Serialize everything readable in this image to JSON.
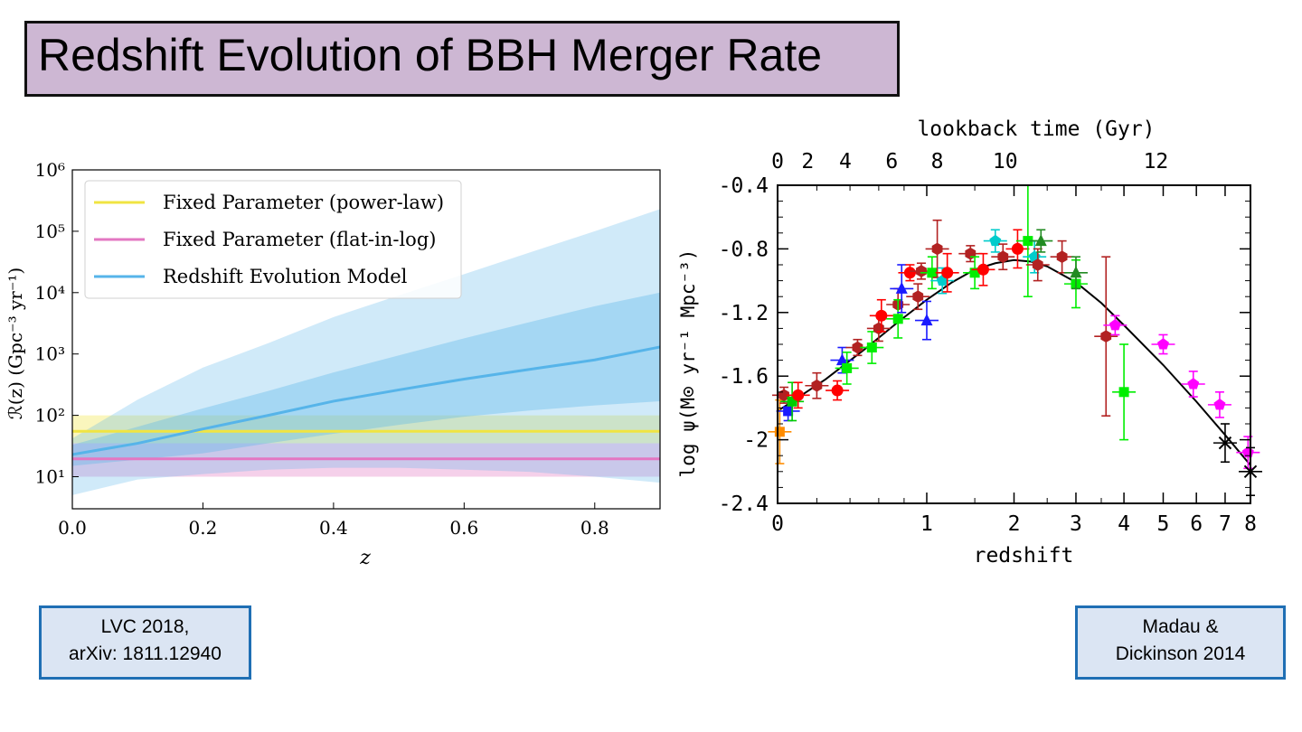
{
  "slide": {
    "title": "Redshift Evolution of BBH Merger Rate",
    "citations": [
      {
        "line1": "LVC 2018,",
        "line2": "arXiv: 1811.12940"
      },
      {
        "line1": "Madau &",
        "line2": "Dickinson 2014"
      }
    ]
  },
  "chart_data": [
    {
      "type": "line",
      "yscale": "log",
      "xlabel": "z",
      "ylabel": "ℛ(z) (Gpc⁻³ yr⁻¹)",
      "xlim": [
        0,
        0.9
      ],
      "ylim": [
        3,
        1000000
      ],
      "xticks": [
        "0.0",
        "0.2",
        "0.4",
        "0.6",
        "0.8"
      ],
      "yticks": [
        "10¹",
        "10²",
        "10³",
        "10⁴",
        "10⁵",
        "10⁶"
      ],
      "legend_position": "top-left",
      "series": [
        {
          "name": "Fixed Parameter (power-law)",
          "color": "#f0e442",
          "x": [
            0.0,
            0.9
          ],
          "median": [
            55,
            55
          ],
          "band90_low": [
            35,
            35
          ],
          "band90_high": [
            100,
            100
          ]
        },
        {
          "name": "Fixed Parameter (flat-in-log)",
          "color": "#e377c2",
          "x": [
            0.0,
            0.9
          ],
          "median": [
            19.5,
            19.5
          ],
          "band90_low": [
            10,
            10
          ],
          "band90_high": [
            35,
            35
          ]
        },
        {
          "name": "Redshift Evolution Model",
          "color": "#56b4e9",
          "x": [
            0.0,
            0.1,
            0.2,
            0.3,
            0.4,
            0.5,
            0.6,
            0.7,
            0.8,
            0.9
          ],
          "median": [
            23,
            35,
            60,
            100,
            170,
            260,
            390,
            560,
            800,
            1300
          ],
          "band50_low": [
            15,
            19,
            24,
            35,
            50,
            70,
            95,
            120,
            145,
            170
          ],
          "band50_high": [
            33,
            65,
            130,
            250,
            500,
            950,
            1800,
            3300,
            6000,
            10000
          ],
          "band90_low": [
            5,
            9,
            11,
            13,
            14,
            14,
            13,
            12,
            10,
            8
          ],
          "band90_high": [
            42,
            180,
            600,
            1500,
            4000,
            9000,
            20000,
            45000,
            100000,
            230000
          ]
        }
      ]
    },
    {
      "type": "scatter",
      "xlabel": "redshift",
      "x2label": "lookback time (Gyr)",
      "ylabel": "log ψ(M⊙ yr⁻¹ Mpc⁻³)",
      "xscale": "log(1+z)",
      "xlim": [
        0,
        8
      ],
      "ylim": [
        -2.4,
        -0.4
      ],
      "xticks": [
        "0",
        "1",
        "2",
        "3",
        "4",
        "5",
        "6",
        "7",
        "8"
      ],
      "x2ticks": [
        "0",
        "2",
        "4",
        "6",
        "8",
        "10",
        "12"
      ],
      "yticks": [
        "-0.4",
        "-0.8",
        "-1.2",
        "-1.6",
        "-2",
        "-2.4"
      ],
      "fit_curve": {
        "z": [
          0,
          0.25,
          0.5,
          0.75,
          1.0,
          1.25,
          1.5,
          1.75,
          2.0,
          2.25,
          2.5,
          3.0,
          3.5,
          4.0,
          5.0,
          6.0,
          7.0,
          8.0
        ],
        "logpsi": [
          -1.82,
          -1.62,
          -1.43,
          -1.26,
          -1.12,
          -1.01,
          -0.93,
          -0.89,
          -0.87,
          -0.88,
          -0.91,
          -1.01,
          -1.14,
          -1.28,
          -1.53,
          -1.76,
          -1.97,
          -2.16
        ]
      },
      "points": [
        {
          "z": 0.01,
          "y": -1.95,
          "color": "#ff8c00",
          "m": "s",
          "err": 0.2
        },
        {
          "z": 0.03,
          "y": -1.72,
          "color": "#b22222",
          "m": "h",
          "err": 0.05
        },
        {
          "z": 0.05,
          "y": -1.82,
          "color": "#1a1aff",
          "m": "s",
          "err": 0.06
        },
        {
          "z": 0.07,
          "y": -1.76,
          "color": "#00cc00",
          "m": "s",
          "err": 0.12
        },
        {
          "z": 0.1,
          "y": -1.72,
          "color": "#ff0000",
          "m": "o",
          "err": 0.08
        },
        {
          "z": 0.2,
          "y": -1.66,
          "color": "#b22222",
          "m": "h",
          "err": 0.08
        },
        {
          "z": 0.32,
          "y": -1.69,
          "color": "#ff0000",
          "m": "o",
          "err": 0.06
        },
        {
          "z": 0.35,
          "y": -1.5,
          "color": "#1a1aff",
          "m": "t",
          "err": 0.08
        },
        {
          "z": 0.38,
          "y": -1.55,
          "color": "#00ee00",
          "m": "s",
          "err": 0.1
        },
        {
          "z": 0.45,
          "y": -1.42,
          "color": "#b22222",
          "m": "h",
          "err": 0.05
        },
        {
          "z": 0.55,
          "y": -1.42,
          "color": "#00ee00",
          "m": "s",
          "err": 0.1
        },
        {
          "z": 0.6,
          "y": -1.3,
          "color": "#b22222",
          "m": "h",
          "err": 0.08
        },
        {
          "z": 0.62,
          "y": -1.22,
          "color": "#ff0000",
          "m": "o",
          "err": 0.1
        },
        {
          "z": 0.75,
          "y": -1.15,
          "color": "#b22222",
          "m": "h",
          "err": 0.1
        },
        {
          "z": 0.75,
          "y": -1.24,
          "color": "#00ee00",
          "m": "s",
          "err": 0.12
        },
        {
          "z": 0.78,
          "y": -1.05,
          "color": "#1a1aff",
          "m": "t",
          "err": 0.15
        },
        {
          "z": 0.85,
          "y": -0.95,
          "color": "#ff0000",
          "m": "o",
          "err": 0.05
        },
        {
          "z": 0.92,
          "y": -1.1,
          "color": "#b22222",
          "m": "h",
          "err": 0.08
        },
        {
          "z": 0.95,
          "y": -0.94,
          "color": "#b22222",
          "m": "h",
          "err": 0.05
        },
        {
          "z": 1.0,
          "y": -1.25,
          "color": "#1a1aff",
          "m": "t",
          "err": 0.12
        },
        {
          "z": 1.05,
          "y": -0.95,
          "color": "#00ee00",
          "m": "s",
          "err": 0.1
        },
        {
          "z": 1.1,
          "y": -0.8,
          "color": "#b22222",
          "m": "h",
          "err": 0.18
        },
        {
          "z": 1.15,
          "y": -1.0,
          "color": "#00cccc",
          "m": "p",
          "err": 0.08
        },
        {
          "z": 1.2,
          "y": -0.95,
          "color": "#ff0000",
          "m": "o",
          "err": 0.12
        },
        {
          "z": 1.45,
          "y": -0.83,
          "color": "#b22222",
          "m": "h",
          "err": 0.05
        },
        {
          "z": 1.5,
          "y": -0.95,
          "color": "#00ee00",
          "m": "s",
          "err": 0.1
        },
        {
          "z": 1.6,
          "y": -0.93,
          "color": "#ff0000",
          "m": "o",
          "err": 0.1
        },
        {
          "z": 1.75,
          "y": -0.75,
          "color": "#00cccc",
          "m": "p",
          "err": 0.07
        },
        {
          "z": 1.85,
          "y": -0.85,
          "color": "#b22222",
          "m": "h",
          "err": 0.08
        },
        {
          "z": 2.05,
          "y": -0.8,
          "color": "#ff0000",
          "m": "o",
          "err": 0.12
        },
        {
          "z": 2.2,
          "y": -0.75,
          "color": "#00ee00",
          "m": "s",
          "err": 0.35
        },
        {
          "z": 2.3,
          "y": -0.85,
          "color": "#00cccc",
          "m": "p",
          "err": 0.1
        },
        {
          "z": 2.35,
          "y": -0.9,
          "color": "#b22222",
          "m": "h",
          "err": 0.1
        },
        {
          "z": 2.4,
          "y": -0.75,
          "color": "#228b22",
          "m": "t",
          "err": 0.07
        },
        {
          "z": 2.75,
          "y": -0.85,
          "color": "#b22222",
          "m": "h",
          "err": 0.1
        },
        {
          "z": 3.0,
          "y": -1.02,
          "color": "#00ee00",
          "m": "s",
          "err": 0.15
        },
        {
          "z": 3.0,
          "y": -0.95,
          "color": "#228b22",
          "m": "t",
          "err": 0.1
        },
        {
          "z": 3.6,
          "y": -1.35,
          "color": "#b22222",
          "m": "h",
          "err": 0.5
        },
        {
          "z": 3.8,
          "y": -1.28,
          "color": "#ff00ff",
          "m": "p",
          "err": 0.06
        },
        {
          "z": 4.0,
          "y": -1.7,
          "color": "#00ee00",
          "m": "s",
          "err": 0.3
        },
        {
          "z": 5.0,
          "y": -1.4,
          "color": "#ff00ff",
          "m": "p",
          "err": 0.06
        },
        {
          "z": 5.9,
          "y": -1.65,
          "color": "#ff00ff",
          "m": "p",
          "err": 0.08
        },
        {
          "z": 6.8,
          "y": -1.78,
          "color": "#ff00ff",
          "m": "p",
          "err": 0.08
        },
        {
          "z": 7.0,
          "y": -2.02,
          "color": "#000000",
          "m": "x",
          "err": 0.12
        },
        {
          "z": 7.9,
          "y": -2.08,
          "color": "#ff00ff",
          "m": "p",
          "err": 0.1
        },
        {
          "z": 8.0,
          "y": -2.2,
          "color": "#000000",
          "m": "x",
          "err": 0.15
        }
      ]
    }
  ]
}
